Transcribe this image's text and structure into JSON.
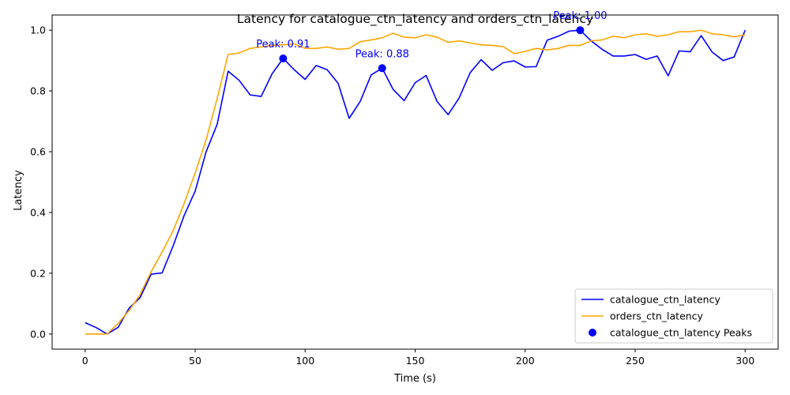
{
  "chart_data": {
    "type": "line",
    "title": "Latency for catalogue_ctn_latency and orders_ctn_latency",
    "xlabel": "Time (s)",
    "ylabel": "Latency",
    "xlim": [
      -15,
      315
    ],
    "ylim": [
      -0.05,
      1.05
    ],
    "xticks": [
      0,
      50,
      100,
      150,
      200,
      250,
      300
    ],
    "yticks": [
      0.0,
      0.2,
      0.4,
      0.6,
      0.8,
      1.0
    ],
    "xtick_labels": [
      "0",
      "50",
      "100",
      "150",
      "200",
      "250",
      "300"
    ],
    "ytick_labels": [
      "0.0",
      "0.2",
      "0.4",
      "0.6",
      "0.8",
      "1.0"
    ],
    "grid": false,
    "legend_position": "lower-right",
    "x": [
      0,
      5,
      10,
      15,
      20,
      25,
      30,
      35,
      40,
      45,
      50,
      55,
      60,
      65,
      70,
      75,
      80,
      85,
      90,
      95,
      100,
      105,
      110,
      115,
      120,
      125,
      130,
      135,
      140,
      145,
      150,
      155,
      160,
      165,
      170,
      175,
      180,
      185,
      190,
      195,
      200,
      205,
      210,
      215,
      220,
      225,
      230,
      235,
      240,
      245,
      250,
      255,
      260,
      265,
      270,
      275,
      280,
      285,
      290,
      295,
      300
    ],
    "series": [
      {
        "name": "catalogue_ctn_latency",
        "color": "#0000ff",
        "values": [
          0.037,
          0.021,
          0.0,
          0.022,
          0.085,
          0.12,
          0.197,
          0.201,
          0.29,
          0.39,
          0.47,
          0.6,
          0.69,
          0.865,
          0.835,
          0.787,
          0.782,
          0.857,
          0.907,
          0.87,
          0.838,
          0.884,
          0.87,
          0.825,
          0.71,
          0.765,
          0.853,
          0.875,
          0.805,
          0.768,
          0.827,
          0.851,
          0.765,
          0.722,
          0.777,
          0.86,
          0.903,
          0.868,
          0.893,
          0.899,
          0.879,
          0.88,
          0.967,
          0.98,
          0.997,
          1.0,
          0.965,
          0.937,
          0.915,
          0.915,
          0.92,
          0.904,
          0.915,
          0.85,
          0.932,
          0.929,
          0.982,
          0.928,
          0.9,
          0.912,
          1.0
        ]
      },
      {
        "name": "orders_ctn_latency",
        "color": "#ffa500",
        "values": [
          0.0,
          0.0,
          0.0,
          0.035,
          0.077,
          0.13,
          0.205,
          0.27,
          0.34,
          0.43,
          0.53,
          0.64,
          0.775,
          0.92,
          0.925,
          0.94,
          0.945,
          0.95,
          0.952,
          0.955,
          0.94,
          0.94,
          0.945,
          0.937,
          0.94,
          0.962,
          0.968,
          0.975,
          0.99,
          0.977,
          0.975,
          0.985,
          0.977,
          0.96,
          0.965,
          0.958,
          0.952,
          0.95,
          0.946,
          0.923,
          0.93,
          0.94,
          0.935,
          0.94,
          0.95,
          0.95,
          0.965,
          0.968,
          0.98,
          0.975,
          0.985,
          0.988,
          0.98,
          0.985,
          0.995,
          0.995,
          1.0,
          0.988,
          0.985,
          0.978,
          0.985
        ]
      }
    ],
    "peaks": {
      "name": "catalogue_ctn_latency Peaks",
      "color": "#0000ff",
      "points": [
        {
          "x": 90,
          "y": 0.907,
          "label": "Peak: 0.91"
        },
        {
          "x": 135,
          "y": 0.875,
          "label": "Peak: 0.88"
        },
        {
          "x": 225,
          "y": 1.0,
          "label": "Peak: 1.00"
        }
      ]
    }
  }
}
